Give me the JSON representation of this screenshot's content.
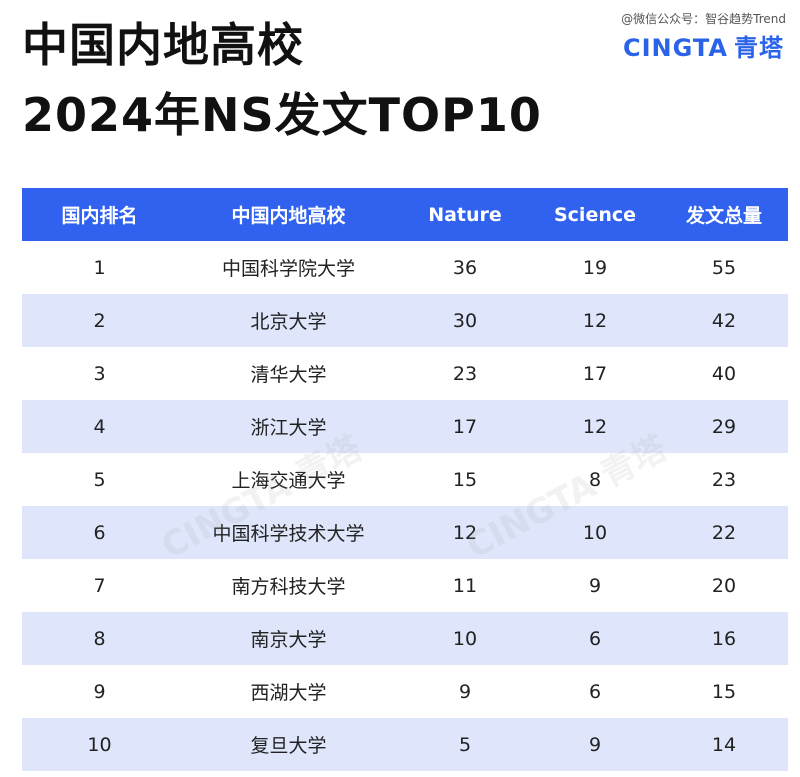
{
  "title_line1": "中国内地高校",
  "title_line2": "2024年NS发文TOP10",
  "source_watermark": "@微信公众号：智谷趋势Trend",
  "brand": {
    "latin": "CINGTA",
    "chinese": "青塔"
  },
  "colors": {
    "header_bg": "#3062ef",
    "stripe": "#dfe6fb",
    "brand": "#2b63e8"
  },
  "chart_data": {
    "type": "table",
    "columns": [
      "国内排名",
      "中国内地高校",
      "Nature",
      "Science",
      "发文总量"
    ],
    "rows": [
      [
        "1",
        "中国科学院大学",
        "36",
        "19",
        "55"
      ],
      [
        "2",
        "北京大学",
        "30",
        "12",
        "42"
      ],
      [
        "3",
        "清华大学",
        "23",
        "17",
        "40"
      ],
      [
        "4",
        "浙江大学",
        "17",
        "12",
        "29"
      ],
      [
        "5",
        "上海交通大学",
        "15",
        "8",
        "23"
      ],
      [
        "6",
        "中国科学技术大学",
        "12",
        "10",
        "22"
      ],
      [
        "7",
        "南方科技大学",
        "11",
        "9",
        "20"
      ],
      [
        "8",
        "南京大学",
        "10",
        "6",
        "16"
      ],
      [
        "9",
        "西湖大学",
        "9",
        "6",
        "15"
      ],
      [
        "10",
        "复旦大学",
        "5",
        "9",
        "14"
      ]
    ]
  }
}
